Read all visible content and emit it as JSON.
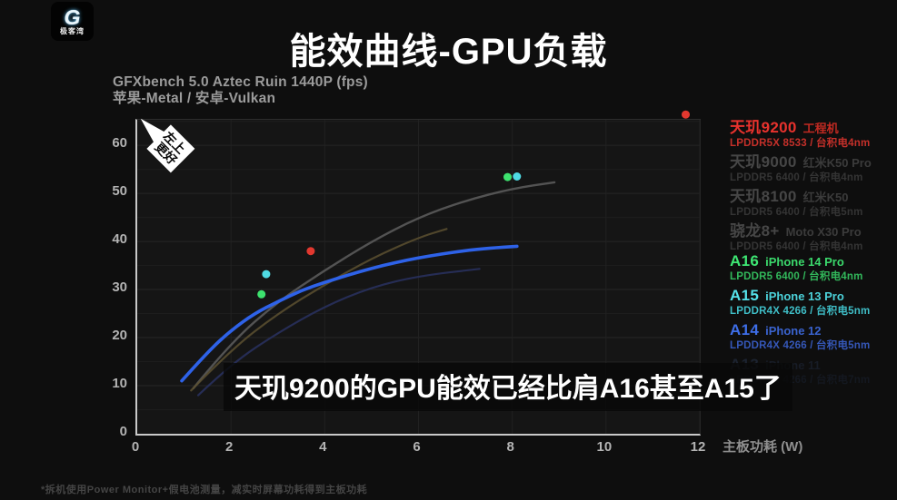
{
  "logo": {
    "brand": "极客湾",
    "monogram": "G"
  },
  "header": {
    "title": "能效曲线-GPU负载"
  },
  "chart_meta": {
    "test_lines": [
      "GFXbench 5.0 Aztec Ruin 1440P (fps)",
      "苹果-Metal / 安卓-Vulkan"
    ],
    "xlabel": "主板功耗 (W)",
    "badge_lines": [
      "左上",
      "更好"
    ]
  },
  "chart_data": {
    "type": "line+scatter",
    "title": "能效曲线-GPU负载",
    "xlabel": "主板功耗 (W)",
    "ylabel": "GFXbench 5.0 Aztec Ruin 1440P (fps)",
    "xlim": [
      0,
      12
    ],
    "ylim": [
      0,
      65.3
    ],
    "x_ticks": [
      0,
      2,
      4,
      6,
      8,
      10,
      12
    ],
    "y_ticks": [
      0,
      10,
      20,
      30,
      40,
      50,
      60
    ],
    "grid": {
      "x_step": 2,
      "y_step": 5,
      "minor_color": "#1d1d1d",
      "major_color": "#262626",
      "v_color": "#212121"
    },
    "series": [
      {
        "key": "sd8plus",
        "name": "骁龙8+",
        "type": "line",
        "color": "#5a5a5a",
        "width": 2.4,
        "opacity": 0.9,
        "dim": true,
        "points": [
          [
            1.2,
            9.5
          ],
          [
            2,
            19
          ],
          [
            3,
            27.5
          ],
          [
            4,
            34
          ],
          [
            5,
            40
          ],
          [
            6,
            45
          ],
          [
            7,
            48.5
          ],
          [
            8,
            51
          ],
          [
            8.9,
            52.3
          ]
        ]
      },
      {
        "key": "d9000",
        "name": "天玑9000",
        "type": "line",
        "color": "#5c5030",
        "width": 2.2,
        "opacity": 0.85,
        "dim": true,
        "points": [
          [
            1.15,
            9
          ],
          [
            2,
            17.5
          ],
          [
            3,
            25
          ],
          [
            4,
            31
          ],
          [
            5,
            36.5
          ],
          [
            6,
            40.8
          ],
          [
            6.6,
            42.6
          ]
        ]
      },
      {
        "key": "d8100",
        "name": "天玑8100",
        "type": "line",
        "color": "#28305c",
        "width": 2.2,
        "opacity": 0.9,
        "dim": true,
        "points": [
          [
            1.3,
            8
          ],
          [
            2,
            14.5
          ],
          [
            3,
            21
          ],
          [
            4,
            26.5
          ],
          [
            5,
            30.5
          ],
          [
            6,
            32.8
          ],
          [
            7.3,
            34.3
          ]
        ]
      },
      {
        "key": "a14",
        "name": "A14",
        "type": "line",
        "color": "#2e62e8",
        "width": 3.6,
        "opacity": 1,
        "dim": false,
        "points": [
          [
            0.95,
            11
          ],
          [
            1.5,
            17
          ],
          [
            2,
            21.5
          ],
          [
            2.5,
            25
          ],
          [
            3,
            27.5
          ],
          [
            3.5,
            29.8
          ],
          [
            4,
            31.5
          ],
          [
            4.5,
            33
          ],
          [
            5,
            34.4
          ],
          [
            5.5,
            35.6
          ],
          [
            6,
            36.6
          ],
          [
            6.5,
            37.4
          ],
          [
            7,
            38.1
          ],
          [
            7.5,
            38.6
          ],
          [
            8.1,
            39
          ]
        ]
      },
      {
        "key": "a16",
        "name": "A16",
        "type": "scatter",
        "color": "#3de26e",
        "radius": 4.5,
        "points": [
          [
            2.65,
            29
          ],
          [
            7.9,
            53.4
          ]
        ]
      },
      {
        "key": "a15",
        "name": "A15",
        "type": "scatter",
        "color": "#4fdbe4",
        "radius": 4.5,
        "points": [
          [
            2.75,
            33.2
          ],
          [
            8.1,
            53.5
          ]
        ]
      },
      {
        "key": "d9200",
        "name": "天玑9200",
        "type": "scatter",
        "color": "#e2382f",
        "radius": 4.5,
        "points": [
          [
            3.7,
            38
          ],
          [
            11.7,
            66.4
          ]
        ]
      }
    ]
  },
  "legend": {
    "items": [
      {
        "key": "d9200",
        "name": "天玑9200",
        "device": "工程机",
        "sub": "LPDDR5X 8533 / 台积电4nm",
        "name_color": "#e8322d",
        "device_color": "#c22a22",
        "sub_color": "#c5302a"
      },
      {
        "key": "d9000",
        "name": "天玑9000",
        "device": "红米K50 Pro",
        "sub": "LPDDR5 6400 / 台积电4nm",
        "name_color": "#464646",
        "device_color": "#3b3b3b",
        "sub_color": "#343434"
      },
      {
        "key": "d8100",
        "name": "天玑8100",
        "device": "红米K50",
        "sub": "LPDDR5 6400 / 台积电5nm",
        "name_color": "#464646",
        "device_color": "#3b3b3b",
        "sub_color": "#343434"
      },
      {
        "key": "sd8plus",
        "name": "骁龙8+",
        "device": "Moto X30 Pro",
        "sub": "LPDDR5 6400 / 台积电4nm",
        "name_color": "#464646",
        "device_color": "#3b3b3b",
        "sub_color": "#343434"
      },
      {
        "key": "a16",
        "name": "A16",
        "device": "iPhone 14 Pro",
        "sub": "LPDDR5 6400 / 台积电4nm",
        "name_color": "#3ee673",
        "device_color": "#3bd96c",
        "sub_color": "#32b85b"
      },
      {
        "key": "a15",
        "name": "A15",
        "device": "iPhone 13 Pro",
        "sub": "LPDDR4X 4266 / 台积电5nm",
        "name_color": "#55e2ea",
        "device_color": "#4cd2da",
        "sub_color": "#3fbec7"
      },
      {
        "key": "a14",
        "name": "A14",
        "device": "iPhone 12",
        "sub": "LPDDR4X 4266 / 台积电5nm",
        "name_color": "#3e6ee8",
        "device_color": "#3a63cf",
        "sub_color": "#3557b8"
      },
      {
        "key": "a13",
        "name": "A13",
        "device": "iPhone 11",
        "sub": "LPDDR4X 4266 / 台积电7nm",
        "name_color": "#1c2330",
        "device_color": "#171c26",
        "sub_color": "#141820"
      }
    ]
  },
  "subtitle_overlay": {
    "text": "天玑9200的GPU能效已经比肩A16甚至A15了"
  },
  "footnote": {
    "text": "*拆机使用Power Monitor+假电池测量，减实时屏幕功耗得到主板功耗"
  }
}
